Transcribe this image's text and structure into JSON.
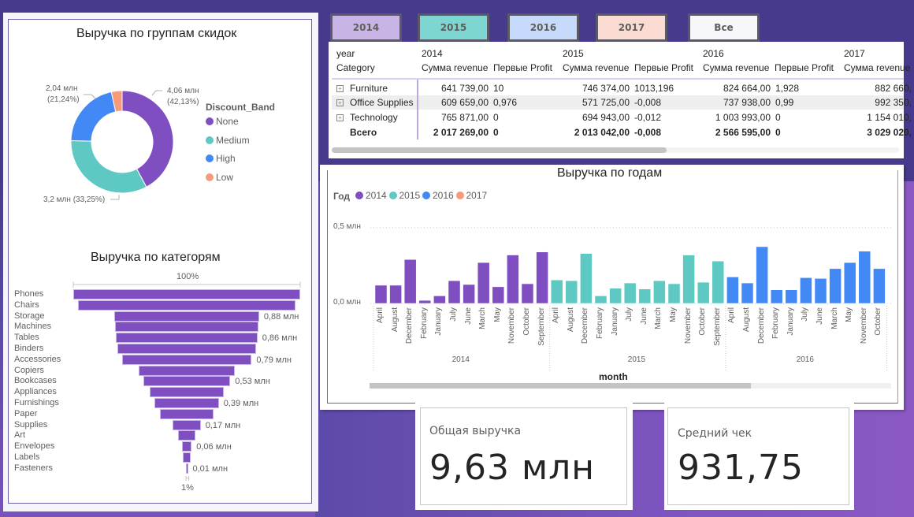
{
  "colors": {
    "none": "#7f4fc2",
    "medium": "#5ec8c2",
    "high": "#4289f5",
    "low": "#f79a7c",
    "y2014": "#7f4fc2",
    "y2015": "#5ec8c2",
    "y2016": "#4289f5",
    "y2017": "#f79a7c"
  },
  "slicer": {
    "buttons": [
      {
        "label": "2014",
        "bg": "#c8b5e6"
      },
      {
        "label": "2015",
        "bg": "#7dd6d1"
      },
      {
        "label": "2016",
        "bg": "#c6dbfb"
      },
      {
        "label": "2017",
        "bg": "#fbdcd3"
      },
      {
        "label": "Все",
        "bg": "#f7f7fb"
      }
    ]
  },
  "donut": {
    "title": "Выручка по группам скидок",
    "legend_title": "Discount_Band",
    "labels": {
      "none": [
        "4,06 млн",
        "(42,13%)"
      ],
      "medium": "3,2 млн (33,25%)",
      "high": [
        "2,04 млн",
        "(21,24%)"
      ]
    }
  },
  "funnel": {
    "title": "Выручка по категорям",
    "top_label": "100%",
    "bottom_label": "1%"
  },
  "matrix": {
    "row_header_1": "year",
    "row_header_2": "Category",
    "years": [
      "2014",
      "2015",
      "2016",
      "2017"
    ],
    "measure_revenue": "Сумма revenue",
    "measure_profit": "Первые Profit",
    "rows": [
      {
        "category": "Furniture",
        "values": [
          "641 739,00",
          "10",
          "746 374,00",
          "1013,196",
          "824 664,00",
          "1,928",
          "882 660,"
        ]
      },
      {
        "category": "Office Supplies",
        "values": [
          "609 659,00",
          "0,976",
          "571 725,00",
          "-0,008",
          "737 938,00",
          "0,99",
          "992 350,"
        ]
      },
      {
        "category": "Technology",
        "values": [
          "765 871,00",
          "0",
          "694 943,00",
          "-0,012",
          "1 003 993,00",
          "0",
          "1 154 010,"
        ]
      }
    ],
    "total": {
      "category": "Всего",
      "values": [
        "2 017 269,00",
        "0",
        "2 013 042,00",
        "-0,008",
        "2 566 595,00",
        "0",
        "3 029 020,"
      ]
    }
  },
  "kpi": {
    "total_revenue_label": "Общая выручка",
    "total_revenue_value": "9,63 млн",
    "avg_check_label": "Средний чек",
    "avg_check_value": "931,75"
  },
  "chart_data": [
    {
      "type": "pie",
      "title": "Выручка по группам скидок",
      "legend_title": "Discount_Band",
      "legend_position": "right",
      "donut": true,
      "slices": [
        {
          "name": "None",
          "value": 4.06,
          "percent": 42.13,
          "label": "4,06 млн (42,13%)"
        },
        {
          "name": "Medium",
          "value": 3.2,
          "percent": 33.25,
          "label": "3,2 млн (33,25%)"
        },
        {
          "name": "High",
          "value": 2.04,
          "percent": 21.24,
          "label": "2,04 млн (21,24%)"
        },
        {
          "name": "Low",
          "value": 0.32,
          "percent": 3.38,
          "label": ""
        }
      ],
      "units": "млн"
    },
    {
      "type": "bar",
      "orientation": "funnel",
      "title": "Выручка по категорям",
      "categories": [
        "Phones",
        "Chairs",
        "Storage",
        "Machines",
        "Tables",
        "Binders",
        "Accessories",
        "Copiers",
        "Bookcases",
        "Appliances",
        "Furnishings",
        "Paper",
        "Supplies",
        "Art",
        "Envelopes",
        "Labels",
        "Fasteners"
      ],
      "values": [
        1.38,
        1.32,
        0.88,
        0.87,
        0.86,
        0.84,
        0.79,
        0.58,
        0.53,
        0.45,
        0.39,
        0.33,
        0.17,
        0.11,
        0.06,
        0.05,
        0.01
      ],
      "data_labels": [
        "",
        "",
        "0,88 млн",
        "",
        "0,86 млн",
        "",
        "0,79 млн",
        "",
        "0,53 млн",
        "",
        "0,39 млн",
        "",
        "0,17 млн",
        "",
        "0,06 млн",
        "",
        "0,01 млн"
      ],
      "annotations": [
        "100%",
        "1%"
      ],
      "units": "млн"
    },
    {
      "type": "bar",
      "title": "Выручка по годам",
      "xlabel": "month",
      "ylabel": "",
      "legend_title": "Год",
      "legend_position": "top-left",
      "legend": [
        "2014",
        "2015",
        "2016",
        "2017"
      ],
      "y_ticks": [
        "0,0 млн",
        "0,5 млн"
      ],
      "ylim": [
        0,
        0.5
      ],
      "grid": true,
      "groups": [
        {
          "name": "2014",
          "series": "2014",
          "months": [
            "April",
            "August",
            "December",
            "February",
            "January",
            "July",
            "June",
            "March",
            "May",
            "November",
            "October",
            "September"
          ],
          "values": [
            0.12,
            0.12,
            0.29,
            0.02,
            0.05,
            0.15,
            0.125,
            0.27,
            0.11,
            0.32,
            0.13,
            0.34
          ]
        },
        {
          "name": "2015",
          "series": "2015",
          "months": [
            "April",
            "August",
            "December",
            "February",
            "January",
            "July",
            "June",
            "March",
            "May",
            "November",
            "October",
            "September"
          ],
          "values": [
            0.155,
            0.15,
            0.33,
            0.05,
            0.1,
            0.135,
            0.095,
            0.15,
            0.13,
            0.32,
            0.14,
            0.28
          ]
        },
        {
          "name": "2016",
          "series": "2016",
          "months": [
            "April",
            "August",
            "December",
            "February",
            "January",
            "July",
            "June",
            "March",
            "May",
            "November",
            "October"
          ],
          "values": [
            0.175,
            0.135,
            0.375,
            0.09,
            0.09,
            0.17,
            0.165,
            0.23,
            0.27,
            0.345,
            0.23
          ]
        }
      ],
      "units": "млн"
    }
  ]
}
